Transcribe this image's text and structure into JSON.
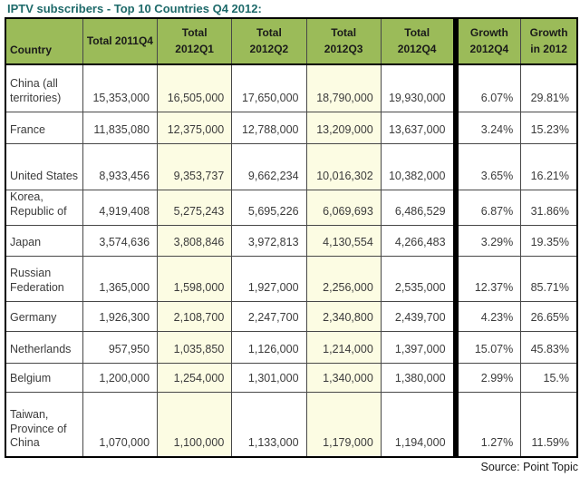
{
  "title": "IPTV subscribers - Top 10 Countries Q4 2012:",
  "source": "Source: Point Topic",
  "colors": {
    "header_green": "#9BBB59",
    "highlight_yellow": "#FCFCE3",
    "title_teal": "#1E6A6A",
    "divider_black": "#000000"
  },
  "chart_data": {
    "type": "table",
    "title": "IPTV subscribers - Top 10 Countries Q4 2012:",
    "columns": [
      "Country",
      "Total 2011Q4",
      "Total 2012Q1",
      "Total 2012Q2",
      "Total 2012Q3",
      "Total 2012Q4",
      "Growth 2012Q4",
      "Growth in 2012"
    ],
    "highlight_columns": [
      2,
      4
    ],
    "divider_before_column": 6,
    "rows": [
      [
        "China (all territories)",
        "15,353,000",
        "16,505,000",
        "17,650,000",
        "18,790,000",
        "19,930,000",
        "6.07%",
        "29.81%"
      ],
      [
        "France",
        "11,835,080",
        "12,375,000",
        "12,788,000",
        "13,209,000",
        "13,637,000",
        "3.24%",
        "15.23%"
      ],
      [
        "United States",
        "8,933,456",
        "9,353,737",
        "9,662,234",
        "10,016,302",
        "10,382,000",
        "3.65%",
        "16.21%"
      ],
      [
        "Korea, Republic of",
        "4,919,408",
        "5,275,243",
        "5,695,226",
        "6,069,693",
        "6,486,529",
        "6.87%",
        "31.86%"
      ],
      [
        "Japan",
        "3,574,636",
        "3,808,846",
        "3,972,813",
        "4,130,554",
        "4,266,483",
        "3.29%",
        "19.35%"
      ],
      [
        "Russian Federation",
        "1,365,000",
        "1,598,000",
        "1,927,000",
        "2,256,000",
        "2,535,000",
        "12.37%",
        "85.71%"
      ],
      [
        "Germany",
        "1,926,300",
        "2,108,700",
        "2,247,700",
        "2,340,800",
        "2,439,700",
        "4.23%",
        "26.65%"
      ],
      [
        "Netherlands",
        "957,950",
        "1,035,850",
        "1,126,000",
        "1,214,000",
        "1,397,000",
        "15.07%",
        "45.83%"
      ],
      [
        "Belgium",
        "1,200,000",
        "1,254,000",
        "1,301,000",
        "1,340,000",
        "1,380,000",
        "2.99%",
        "15.%"
      ],
      [
        "Taiwan, Province of China",
        "1,070,000",
        "1,100,000",
        "1,133,000",
        "1,179,000",
        "1,194,000",
        "1.27%",
        "11.59%"
      ]
    ]
  }
}
